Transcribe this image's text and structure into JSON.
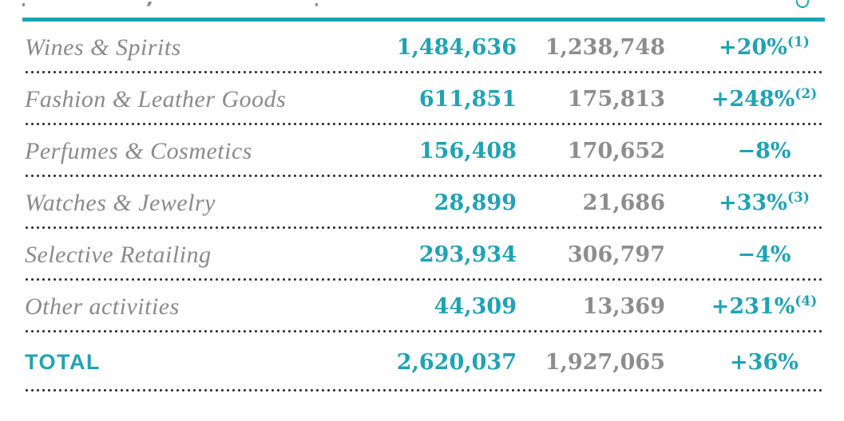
{
  "colors": {
    "accent": "#1ea3b5",
    "num_gray": "#8d8d8d",
    "label_gray": "#8a8a8a",
    "dots": "#2b2b2b"
  },
  "table": {
    "rows": [
      {
        "label": "Wines & Spirits",
        "value_current": "1,484,636",
        "value_prior": "1,238,748",
        "change": "+20%",
        "footnote": "(1)"
      },
      {
        "label": "Fashion & Leather Goods",
        "value_current": "611,851",
        "value_prior": "175,813",
        "change": "+248%",
        "footnote": "(2)"
      },
      {
        "label": "Perfumes & Cosmetics",
        "value_current": "156,408",
        "value_prior": "170,652",
        "change": "−8%",
        "footnote": ""
      },
      {
        "label": "Watches & Jewelry",
        "value_current": "28,899",
        "value_prior": "21,686",
        "change": "+33%",
        "footnote": "(3)"
      },
      {
        "label": "Selective Retailing",
        "value_current": "293,934",
        "value_prior": "306,797",
        "change": "−4%",
        "footnote": ""
      },
      {
        "label": "Other activities",
        "value_current": "44,309",
        "value_prior": "13,369",
        "change": "+231%",
        "footnote": "(4)"
      }
    ],
    "total": {
      "label": "TOTAL",
      "value_current": "2,620,037",
      "value_prior": "1,927,065",
      "change": "+36%",
      "footnote": ""
    }
  }
}
